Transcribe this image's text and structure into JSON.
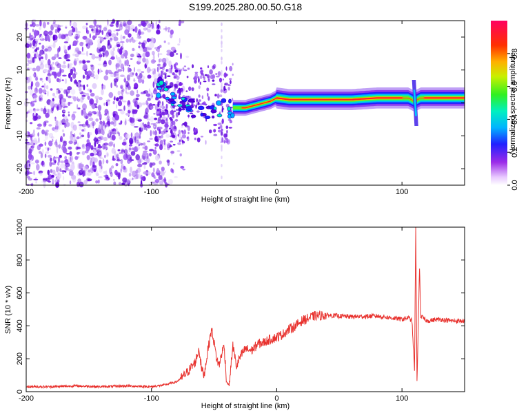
{
  "title": "S199.2025.280.00.50.G18",
  "colors": {
    "snr_line": "#e8322e",
    "axis": "#000000"
  },
  "chart_data": [
    {
      "type": "heatmap",
      "name": "spectrogram",
      "xlabel": "Height of straight line (km)",
      "ylabel": "Frequency (Hz)",
      "xlim": [
        -200,
        150
      ],
      "ylim": [
        -25,
        25
      ],
      "xticks": [
        -200,
        -100,
        0,
        100
      ],
      "xtick_labels": [
        "-200",
        "-100",
        "0",
        "100"
      ],
      "yticks": [
        -20,
        -10,
        0,
        10,
        20
      ],
      "ytick_labels": [
        "-20",
        "-10",
        "0",
        "10",
        "20"
      ],
      "colorbar": {
        "label": "Normalized spectral amplitude",
        "range": [
          0.0,
          1.0
        ],
        "ticks": [
          0.0,
          0.2,
          0.4,
          0.6,
          0.8
        ],
        "tick_labels": [
          "0.0",
          "0.2",
          "0.4",
          "0.6",
          "0.8"
        ]
      },
      "noise_region_x": [
        -200,
        -80
      ],
      "signal_ridge": {
        "x": [
          -95,
          -85,
          -75,
          -65,
          -55,
          -45,
          -40,
          -35,
          -25,
          -15,
          -5,
          0,
          10,
          20,
          40,
          60,
          80,
          95,
          105,
          110,
          115,
          130,
          150
        ],
        "freq_hz": [
          5,
          3,
          0,
          -2,
          -4,
          -2,
          -1,
          -1.5,
          -1.5,
          -0.5,
          0.5,
          1.5,
          1,
          1,
          1,
          1,
          1.5,
          1.5,
          1.5,
          0.5,
          1.5,
          1.5,
          1.5
        ]
      }
    },
    {
      "type": "line",
      "name": "snr",
      "xlabel": "Height of straight line (km)",
      "ylabel": "SNR (10 * v/v)",
      "xlim": [
        -200,
        150
      ],
      "ylim": [
        0,
        1000
      ],
      "xticks": [
        -200,
        -100,
        0,
        100
      ],
      "xtick_labels": [
        "-200",
        "-100",
        "0",
        "100"
      ],
      "yticks": [
        0,
        200,
        400,
        600,
        800,
        1000
      ],
      "ytick_labels": [
        "0",
        "200",
        "400",
        "600",
        "800",
        "1000"
      ],
      "series": [
        {
          "name": "SNR",
          "x": [
            -200,
            -180,
            -160,
            -140,
            -120,
            -100,
            -90,
            -80,
            -75,
            -70,
            -65,
            -62,
            -60,
            -58,
            -55,
            -52,
            -50,
            -48,
            -46,
            -44,
            -42,
            -40,
            -38,
            -35,
            -32,
            -30,
            -25,
            -20,
            -15,
            -10,
            -5,
            0,
            5,
            10,
            15,
            20,
            30,
            40,
            60,
            80,
            100,
            105,
            108,
            110,
            111,
            112,
            113,
            114,
            115,
            118,
            120,
            130,
            140,
            150
          ],
          "y": [
            30,
            30,
            35,
            30,
            35,
            30,
            40,
            60,
            90,
            130,
            180,
            260,
            140,
            100,
            250,
            380,
            300,
            200,
            160,
            230,
            280,
            60,
            40,
            280,
            150,
            200,
            260,
            250,
            290,
            300,
            320,
            330,
            350,
            380,
            400,
            430,
            460,
            465,
            455,
            460,
            440,
            450,
            430,
            130,
            1000,
            60,
            400,
            760,
            460,
            440,
            430,
            440,
            430,
            430
          ]
        }
      ]
    }
  ]
}
